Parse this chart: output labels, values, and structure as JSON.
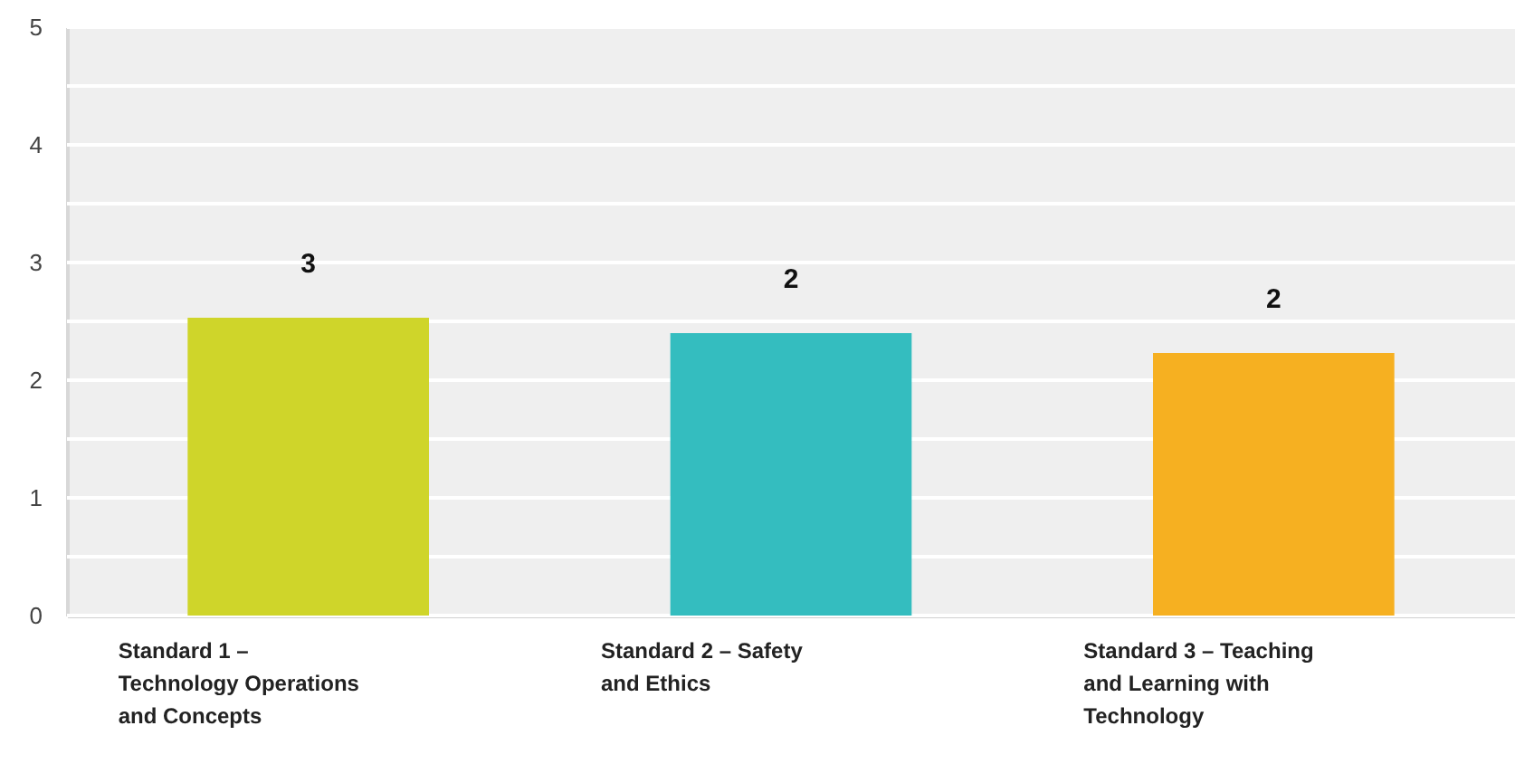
{
  "chart_data": {
    "type": "bar",
    "categories": [
      "Standard 1 – Technology Operations and Concepts",
      "Standard 2 – Safety and Ethics",
      "Standard 3 – Teaching and Learning with Technology"
    ],
    "values": [
      2.53,
      2.4,
      2.23
    ],
    "colors": [
      "#cfd52a",
      "#34bdbf",
      "#f6b021"
    ],
    "value_labels": [
      "3",
      "2",
      "2"
    ],
    "ylim": [
      0,
      5
    ],
    "yticks": [
      0,
      {
        "value": 0.5,
        "label": null
      },
      1,
      {
        "value": 1.5,
        "label": null
      },
      2,
      {
        "value": 2.5,
        "label": null
      },
      3,
      {
        "value": 3.5,
        "label": null
      },
      4,
      {
        "value": 4.5,
        "label": null
      },
      5
    ],
    "grid": true
  }
}
